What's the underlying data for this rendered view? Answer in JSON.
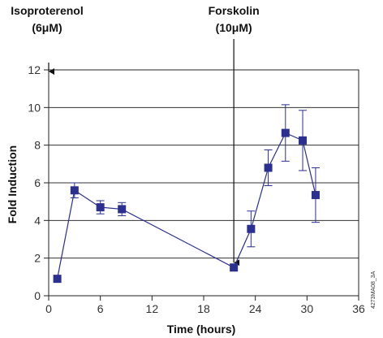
{
  "chart_data": {
    "type": "line",
    "xlabel": "Time (hours)",
    "ylabel": "Fold Induction",
    "xlim": [
      0,
      36
    ],
    "ylim": [
      0,
      12
    ],
    "xticks": [
      0,
      6,
      12,
      18,
      24,
      30,
      36
    ],
    "yticks": [
      0,
      2,
      4,
      6,
      8,
      10,
      12
    ],
    "grid": "horizontal",
    "colors": {
      "series": "#2b2f8f",
      "axis": "#222222",
      "grid": "#333333"
    },
    "series": [
      {
        "x": [
          1,
          3,
          6,
          8.5,
          21.5,
          23.5,
          25.5,
          27.5,
          29.5,
          31
        ],
        "y": [
          0.9,
          5.6,
          4.7,
          4.6,
          1.5,
          3.55,
          6.8,
          8.65,
          8.25,
          5.35
        ],
        "err": [
          0,
          0.4,
          0.35,
          0.35,
          0,
          0.95,
          0.95,
          1.5,
          1.6,
          1.45
        ]
      }
    ],
    "annotations": [
      {
        "lines": [
          "Isoproterenol",
          "(6μM)"
        ],
        "x": 0
      },
      {
        "lines": [
          "Forskolin",
          "(10μM)"
        ],
        "x": 21.5
      }
    ],
    "figure_id": "4273MA08_3A"
  }
}
